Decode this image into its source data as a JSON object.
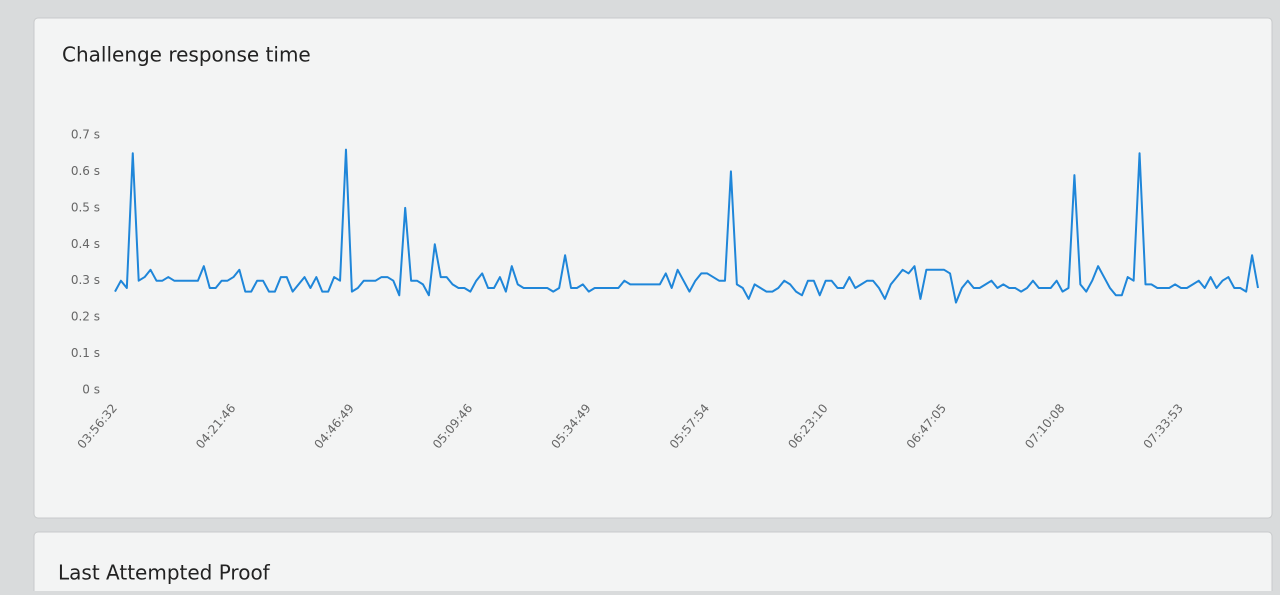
{
  "chart_data": {
    "type": "line",
    "title": "Challenge response time",
    "color": "#1f86d9",
    "ylim": [
      0,
      0.7
    ],
    "yticks": [
      {
        "value": 0,
        "label": "0 s"
      },
      {
        "value": 0.1,
        "label": "0.1 s"
      },
      {
        "value": 0.2,
        "label": "0.2 s"
      },
      {
        "value": 0.3,
        "label": "0.3 s"
      },
      {
        "value": 0.4,
        "label": "0.4 s"
      },
      {
        "value": 0.5,
        "label": "0.5 s"
      },
      {
        "value": 0.6,
        "label": "0.6 s"
      },
      {
        "value": 0.7,
        "label": "0.7 s"
      }
    ],
    "categories": [
      "03:56:32",
      null,
      null,
      null,
      null,
      null,
      null,
      null,
      null,
      null,
      null,
      null,
      null,
      null,
      null,
      null,
      null,
      null,
      null,
      null,
      "04:21:46",
      null,
      null,
      null,
      null,
      null,
      null,
      null,
      null,
      null,
      null,
      null,
      null,
      null,
      null,
      null,
      null,
      null,
      null,
      null,
      "04:46:49",
      null,
      null,
      null,
      null,
      null,
      null,
      null,
      null,
      null,
      null,
      null,
      null,
      null,
      null,
      null,
      null,
      null,
      null,
      null,
      "05:09:46",
      null,
      null,
      null,
      null,
      null,
      null,
      null,
      null,
      null,
      null,
      null,
      null,
      null,
      null,
      null,
      null,
      null,
      null,
      null,
      "05:34:49",
      null,
      null,
      null,
      null,
      null,
      null,
      null,
      null,
      null,
      null,
      null,
      null,
      null,
      null,
      null,
      null,
      null,
      null,
      null,
      "05:57:54",
      null,
      null,
      null,
      null,
      null,
      null,
      null,
      null,
      null,
      null,
      null,
      null,
      null,
      null,
      null,
      null,
      null,
      null,
      null,
      "06:23:10",
      null,
      null,
      null,
      null,
      null,
      null,
      null,
      null,
      null,
      null,
      null,
      null,
      null,
      null,
      null,
      null,
      null,
      null,
      null,
      "06:47:05",
      null,
      null,
      null,
      null,
      null,
      null,
      null,
      null,
      null,
      null,
      null,
      null,
      null,
      null,
      null,
      null,
      null,
      null,
      null,
      "07:10:08",
      null,
      null,
      null,
      null,
      null,
      null,
      null,
      null,
      null,
      null,
      null,
      null,
      null,
      null,
      null,
      null,
      null,
      null,
      null,
      "07:33:53",
      null,
      null,
      null,
      null,
      null,
      null,
      null,
      null,
      null,
      null,
      null,
      null,
      null
    ],
    "values": [
      0.27,
      0.3,
      0.28,
      0.65,
      0.3,
      0.31,
      0.33,
      0.3,
      0.3,
      0.31,
      0.3,
      0.3,
      0.3,
      0.3,
      0.3,
      0.34,
      0.28,
      0.28,
      0.3,
      0.3,
      0.31,
      0.33,
      0.27,
      0.27,
      0.3,
      0.3,
      0.27,
      0.27,
      0.31,
      0.31,
      0.27,
      0.29,
      0.31,
      0.28,
      0.31,
      0.27,
      0.27,
      0.31,
      0.3,
      0.66,
      0.27,
      0.28,
      0.3,
      0.3,
      0.3,
      0.31,
      0.31,
      0.3,
      0.26,
      0.5,
      0.3,
      0.3,
      0.29,
      0.26,
      0.4,
      0.31,
      0.31,
      0.29,
      0.28,
      0.28,
      0.27,
      0.3,
      0.32,
      0.28,
      0.28,
      0.31,
      0.27,
      0.34,
      0.29,
      0.28,
      0.28,
      0.28,
      0.28,
      0.28,
      0.27,
      0.28,
      0.37,
      0.28,
      0.28,
      0.29,
      0.27,
      0.28,
      0.28,
      0.28,
      0.28,
      0.28,
      0.3,
      0.29,
      0.29,
      0.29,
      0.29,
      0.29,
      0.29,
      0.32,
      0.28,
      0.33,
      0.3,
      0.27,
      0.3,
      0.32,
      0.32,
      0.31,
      0.3,
      0.3,
      0.6,
      0.29,
      0.28,
      0.25,
      0.29,
      0.28,
      0.27,
      0.27,
      0.28,
      0.3,
      0.29,
      0.27,
      0.26,
      0.3,
      0.3,
      0.26,
      0.3,
      0.3,
      0.28,
      0.28,
      0.31,
      0.28,
      0.29,
      0.3,
      0.3,
      0.28,
      0.25,
      0.29,
      0.31,
      0.33,
      0.32,
      0.34,
      0.25,
      0.33,
      0.33,
      0.33,
      0.33,
      0.32,
      0.24,
      0.28,
      0.3,
      0.28,
      0.28,
      0.29,
      0.3,
      0.28,
      0.29,
      0.28,
      0.28,
      0.27,
      0.28,
      0.3,
      0.28,
      0.28,
      0.28,
      0.3,
      0.27,
      0.28,
      0.59,
      0.29,
      0.27,
      0.3,
      0.34,
      0.31,
      0.28,
      0.26,
      0.26,
      0.31,
      0.3,
      0.65,
      0.29,
      0.29,
      0.28,
      0.28,
      0.28,
      0.29,
      0.28,
      0.28,
      0.29,
      0.3,
      0.28,
      0.31,
      0.28,
      0.3,
      0.31,
      0.28,
      0.28,
      0.27,
      0.37,
      0.28
    ]
  },
  "next_card": {
    "title": "Last Attempted Proof"
  }
}
